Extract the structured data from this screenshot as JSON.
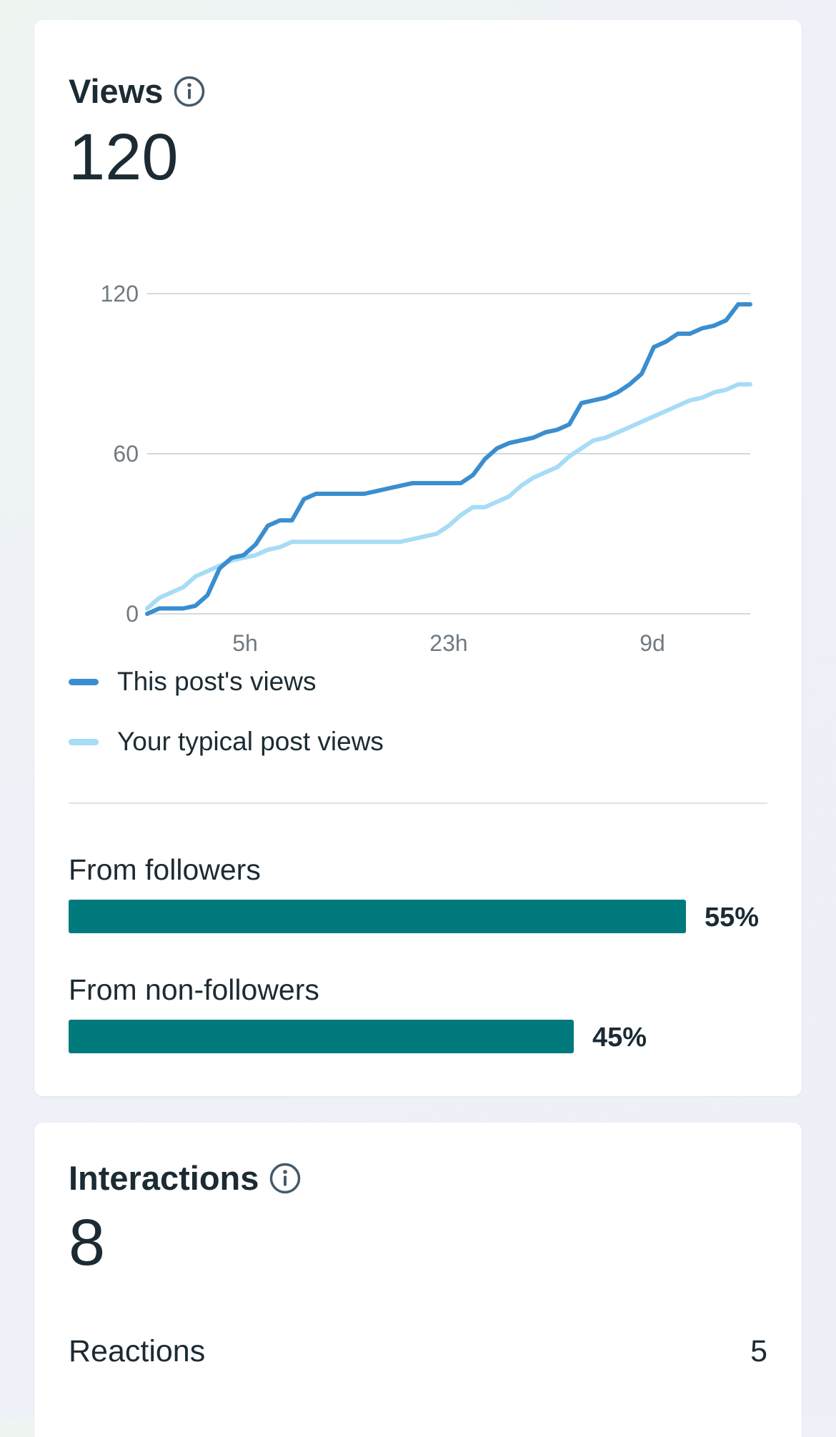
{
  "views": {
    "title": "Views",
    "total": "120",
    "legend": {
      "this_post": "This post's views",
      "typical": "Your typical post views"
    },
    "breakdown": [
      {
        "label": "From followers",
        "percent": "55%",
        "fraction": 0.55
      },
      {
        "label": "From non-followers",
        "percent": "45%",
        "fraction": 0.45
      }
    ]
  },
  "chart_data": {
    "type": "line",
    "title": "",
    "xlabel": "",
    "ylabel": "",
    "ylim": [
      0,
      120
    ],
    "y_ticks": [
      "0",
      "60",
      "120"
    ],
    "x_ticks": [
      "5h",
      "23h",
      "9d"
    ],
    "grid": true,
    "legend": "bottom",
    "colors": {
      "this_post": "#3a8ecf",
      "typical": "#a6dcf6"
    },
    "series": [
      {
        "name": "This post's views",
        "values": [
          0,
          2,
          2,
          2,
          3,
          7,
          17,
          21,
          22,
          26,
          33,
          35,
          35,
          43,
          45,
          45,
          45,
          45,
          45,
          46,
          47,
          48,
          49,
          49,
          49,
          49,
          49,
          52,
          58,
          62,
          64,
          65,
          66,
          68,
          69,
          71,
          79,
          80,
          81,
          83,
          86,
          90,
          100,
          102,
          105,
          105,
          107,
          108,
          110,
          116,
          116
        ]
      },
      {
        "name": "Your typical post views",
        "values": [
          2,
          6,
          8,
          10,
          14,
          16,
          18,
          20,
          21,
          22,
          24,
          25,
          27,
          27,
          27,
          27,
          27,
          27,
          27,
          27,
          27,
          27,
          28,
          29,
          30,
          33,
          37,
          40,
          40,
          42,
          44,
          48,
          51,
          53,
          55,
          59,
          62,
          65,
          66,
          68,
          70,
          72,
          74,
          76,
          78,
          80,
          81,
          83,
          84,
          86,
          86
        ]
      }
    ]
  },
  "interactions": {
    "title": "Interactions",
    "total": "8",
    "rows": [
      {
        "label": "Reactions",
        "value": "5"
      }
    ]
  }
}
